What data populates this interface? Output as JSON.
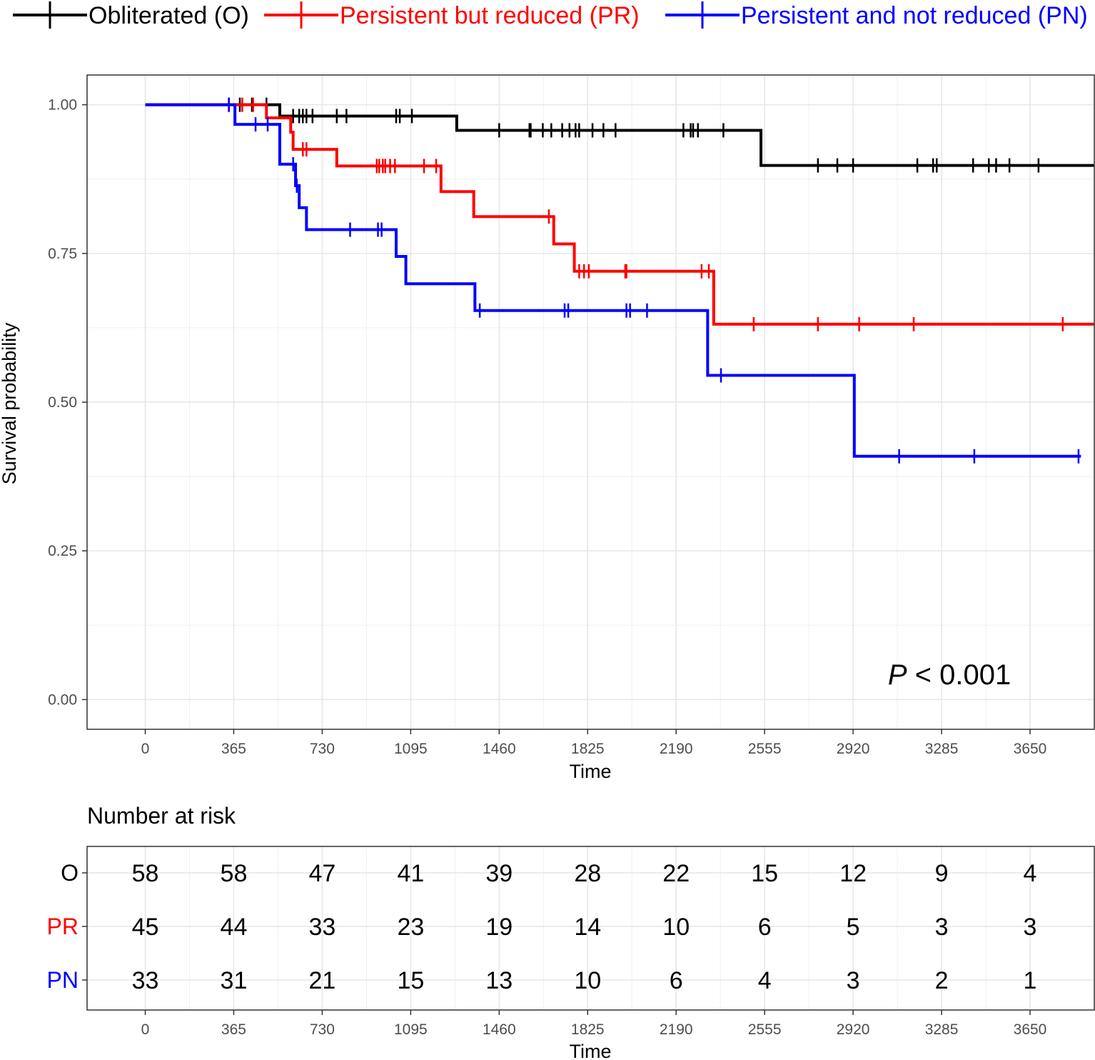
{
  "chart_data": {
    "type": "line",
    "subtype": "kaplan-meier",
    "xlabel": "Time",
    "ylabel": "Survival probability",
    "xlim": [
      -240,
      3915
    ],
    "ylim": [
      -0.05,
      1.05
    ],
    "xticks": [
      0,
      365,
      730,
      1095,
      1460,
      1825,
      2190,
      2555,
      2920,
      3285,
      3650
    ],
    "xtick_labels": [
      "0",
      "365",
      "730",
      "1095",
      "1460",
      "1825",
      "2190",
      "2555",
      "2920",
      "3285",
      "3650"
    ],
    "yticks": [
      0,
      0.25,
      0.5,
      0.75,
      1.0
    ],
    "ytick_labels": [
      "0.00",
      "0.25",
      "0.50",
      "0.75",
      "1.00"
    ],
    "pvalue": {
      "italic": "P",
      "rest": " < 0.001"
    },
    "series": [
      {
        "name": "Obliterated (O)",
        "short": "O",
        "color": "#000000",
        "steps": [
          [
            0,
            1.0
          ],
          [
            555,
            0.981
          ],
          [
            1285,
            0.957
          ],
          [
            2540,
            0.898
          ],
          [
            3915,
            0.898
          ]
        ],
        "censors": [
          [
            345,
            1.0
          ],
          [
            390,
            1.0
          ],
          [
            440,
            1.0
          ],
          [
            500,
            1.0
          ],
          [
            610,
            0.981
          ],
          [
            635,
            0.981
          ],
          [
            650,
            0.981
          ],
          [
            665,
            0.981
          ],
          [
            690,
            0.981
          ],
          [
            790,
            0.981
          ],
          [
            830,
            0.981
          ],
          [
            1035,
            0.981
          ],
          [
            1050,
            0.981
          ],
          [
            1100,
            0.981
          ],
          [
            1460,
            0.957
          ],
          [
            1585,
            0.957
          ],
          [
            1590,
            0.957
          ],
          [
            1640,
            0.957
          ],
          [
            1675,
            0.957
          ],
          [
            1720,
            0.957
          ],
          [
            1750,
            0.957
          ],
          [
            1775,
            0.957
          ],
          [
            1790,
            0.957
          ],
          [
            1845,
            0.957
          ],
          [
            1890,
            0.957
          ],
          [
            1940,
            0.957
          ],
          [
            2220,
            0.957
          ],
          [
            2250,
            0.957
          ],
          [
            2260,
            0.957
          ],
          [
            2280,
            0.957
          ],
          [
            2385,
            0.957
          ],
          [
            2775,
            0.898
          ],
          [
            2855,
            0.898
          ],
          [
            2920,
            0.898
          ],
          [
            3185,
            0.898
          ],
          [
            3250,
            0.898
          ],
          [
            3265,
            0.898
          ],
          [
            3415,
            0.898
          ],
          [
            3480,
            0.898
          ],
          [
            3510,
            0.898
          ],
          [
            3565,
            0.898
          ],
          [
            3685,
            0.898
          ]
        ]
      },
      {
        "name": "Persistent but reduced (PR)",
        "short": "PR",
        "color": "#ff0000",
        "steps": [
          [
            0,
            1.0
          ],
          [
            500,
            0.978
          ],
          [
            600,
            0.954
          ],
          [
            610,
            0.925
          ],
          [
            790,
            0.897
          ],
          [
            1220,
            0.854
          ],
          [
            1355,
            0.812
          ],
          [
            1685,
            0.766
          ],
          [
            1770,
            0.72
          ],
          [
            2345,
            0.631
          ],
          [
            3915,
            0.631
          ]
        ],
        "censors": [
          [
            345,
            1.0
          ],
          [
            400,
            1.0
          ],
          [
            445,
            1.0
          ],
          [
            650,
            0.925
          ],
          [
            665,
            0.925
          ],
          [
            955,
            0.897
          ],
          [
            965,
            0.897
          ],
          [
            980,
            0.897
          ],
          [
            990,
            0.897
          ],
          [
            1010,
            0.897
          ],
          [
            1030,
            0.897
          ],
          [
            1150,
            0.897
          ],
          [
            1200,
            0.897
          ],
          [
            1665,
            0.812
          ],
          [
            1790,
            0.72
          ],
          [
            1810,
            0.72
          ],
          [
            1830,
            0.72
          ],
          [
            1980,
            0.72
          ],
          [
            1985,
            0.72
          ],
          [
            2295,
            0.72
          ],
          [
            2325,
            0.72
          ],
          [
            2510,
            0.631
          ],
          [
            2775,
            0.631
          ],
          [
            2945,
            0.631
          ],
          [
            3170,
            0.631
          ],
          [
            3785,
            0.631
          ]
        ]
      },
      {
        "name": "Persistent and not reduced (PN)",
        "short": "PN",
        "color": "#0000ff",
        "steps": [
          [
            0,
            1.0
          ],
          [
            370,
            0.967
          ],
          [
            555,
            0.9
          ],
          [
            620,
            0.864
          ],
          [
            635,
            0.827
          ],
          [
            665,
            0.79
          ],
          [
            1035,
            0.745
          ],
          [
            1075,
            0.699
          ],
          [
            1360,
            0.654
          ],
          [
            2320,
            0.545
          ],
          [
            2925,
            0.409
          ],
          [
            3860,
            0.409
          ]
        ],
        "censors": [
          [
            345,
            1.0
          ],
          [
            455,
            0.967
          ],
          [
            505,
            0.967
          ],
          [
            610,
            0.9
          ],
          [
            625,
            0.864
          ],
          [
            845,
            0.79
          ],
          [
            960,
            0.79
          ],
          [
            975,
            0.79
          ],
          [
            1380,
            0.654
          ],
          [
            1730,
            0.654
          ],
          [
            1745,
            0.654
          ],
          [
            1985,
            0.654
          ],
          [
            2000,
            0.654
          ],
          [
            2070,
            0.654
          ],
          [
            2375,
            0.545
          ],
          [
            3110,
            0.409
          ],
          [
            3420,
            0.409
          ],
          [
            3850,
            0.409
          ]
        ]
      }
    ],
    "risk_table": {
      "title": "Number at risk",
      "xlabel": "Time",
      "rows": [
        {
          "label": "O",
          "color": "#000000",
          "values": [
            58,
            58,
            47,
            41,
            39,
            28,
            22,
            15,
            12,
            9,
            4
          ]
        },
        {
          "label": "PR",
          "color": "#ff0000",
          "values": [
            45,
            44,
            33,
            23,
            19,
            14,
            10,
            6,
            5,
            3,
            3
          ]
        },
        {
          "label": "PN",
          "color": "#0000ff",
          "values": [
            33,
            31,
            21,
            15,
            13,
            10,
            6,
            4,
            3,
            2,
            1
          ]
        }
      ]
    }
  }
}
